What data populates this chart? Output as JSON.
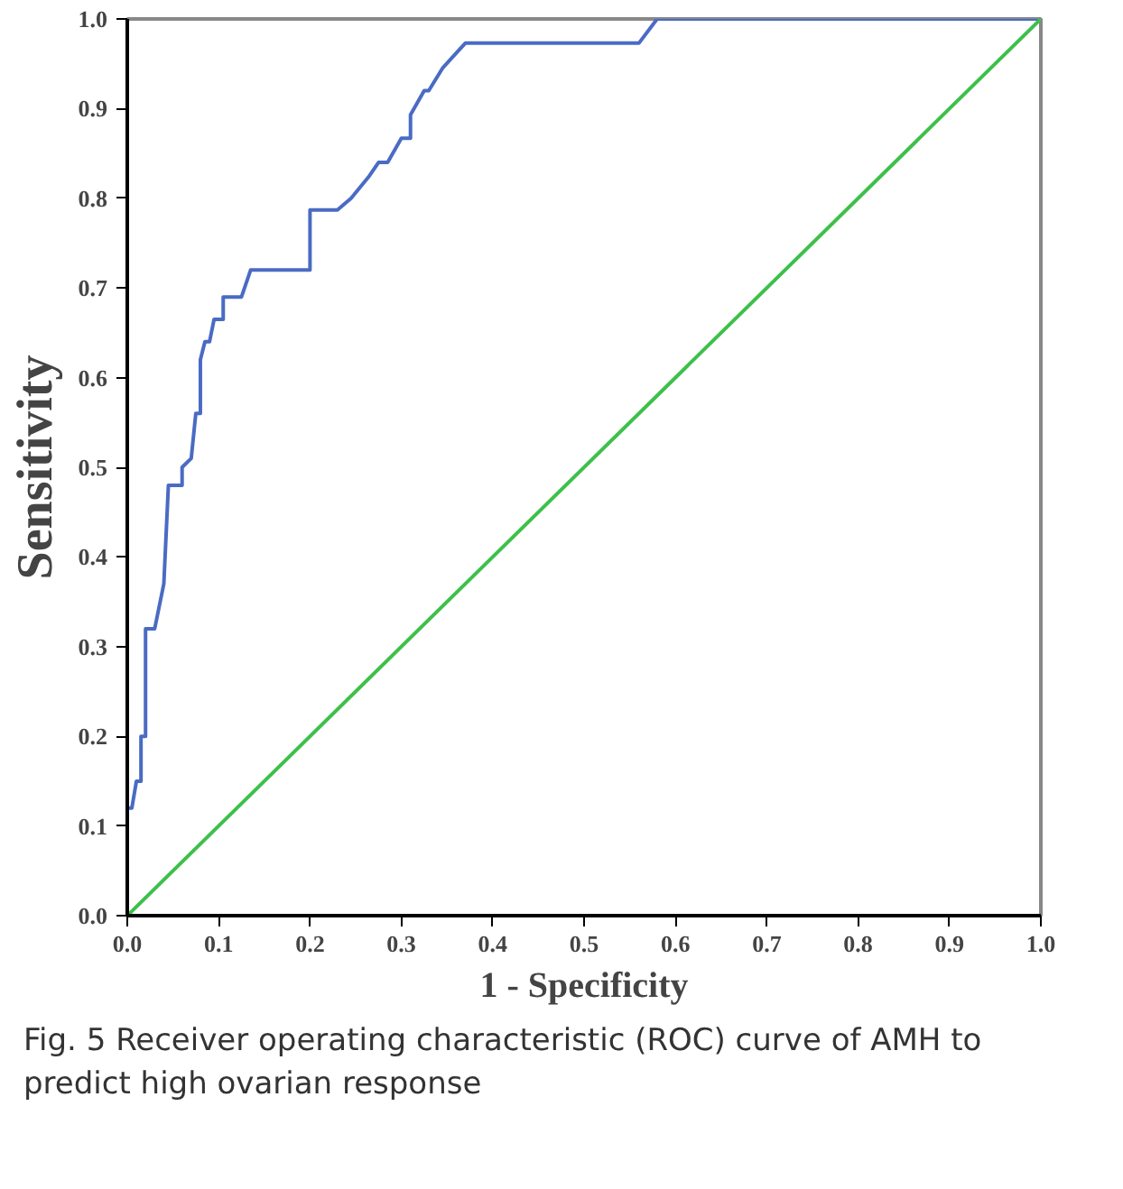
{
  "chart_data": {
    "type": "line",
    "xlabel": "1 - Specificity",
    "ylabel": "Sensitivity",
    "xlim": [
      0,
      1
    ],
    "ylim": [
      0,
      1
    ],
    "xticks": [
      {
        "value": 0,
        "label": "0.0"
      },
      {
        "value": 0.1,
        "label": "0.1"
      },
      {
        "value": 0.2,
        "label": "0.2"
      },
      {
        "value": 0.3,
        "label": "0.3"
      },
      {
        "value": 0.4,
        "label": "0.4"
      },
      {
        "value": 0.5,
        "label": "0.5"
      },
      {
        "value": 0.6,
        "label": "0.6"
      },
      {
        "value": 0.7,
        "label": "0.7"
      },
      {
        "value": 0.8,
        "label": "0.8"
      },
      {
        "value": 0.9,
        "label": "0.9"
      },
      {
        "value": 1,
        "label": "1.0"
      }
    ],
    "yticks": [
      {
        "value": 0,
        "label": "0.0"
      },
      {
        "value": 0.1,
        "label": "0.1"
      },
      {
        "value": 0.2,
        "label": "0.2"
      },
      {
        "value": 0.3,
        "label": "0.3"
      },
      {
        "value": 0.4,
        "label": "0.4"
      },
      {
        "value": 0.5,
        "label": "0.5"
      },
      {
        "value": 0.6,
        "label": "0.6"
      },
      {
        "value": 0.7,
        "label": "0.7"
      },
      {
        "value": 0.8,
        "label": "0.8"
      },
      {
        "value": 0.9,
        "label": "0.9"
      },
      {
        "value": 1,
        "label": "1.0"
      }
    ],
    "grid": false,
    "marker": "none",
    "line_style": "solid",
    "series": [
      {
        "color": "#4a6bc4",
        "x": [
          0,
          0,
          0.005,
          0.01,
          0.015,
          0.015,
          0.02,
          0.02,
          0.03,
          0.04,
          0.045,
          0.06,
          0.06,
          0.07,
          0.075,
          0.08,
          0.08,
          0.085,
          0.09,
          0.095,
          0.105,
          0.105,
          0.125,
          0.135,
          0.2,
          0.2,
          0.23,
          0.245,
          0.265,
          0.275,
          0.285,
          0.3,
          0.31,
          0.31,
          0.325,
          0.33,
          0.345,
          0.37,
          0.56,
          0.58,
          1
        ],
        "values": [
          0,
          0.12,
          0.12,
          0.15,
          0.15,
          0.2,
          0.2,
          0.32,
          0.32,
          0.37,
          0.48,
          0.48,
          0.5,
          0.51,
          0.56,
          0.56,
          0.62,
          0.64,
          0.64,
          0.665,
          0.665,
          0.69,
          0.69,
          0.72,
          0.72,
          0.787,
          0.787,
          0.8,
          0.825,
          0.84,
          0.84,
          0.867,
          0.867,
          0.893,
          0.92,
          0.92,
          0.945,
          0.973,
          0.973,
          1,
          1
        ]
      },
      {
        "color": "#3dc04a",
        "x": [
          0,
          1
        ],
        "values": [
          0,
          1
        ]
      }
    ],
    "annotations": [
      "Fig. 5 Receiver operating characteristic (ROC) curve of AMH to predict high ovarian response"
    ]
  }
}
